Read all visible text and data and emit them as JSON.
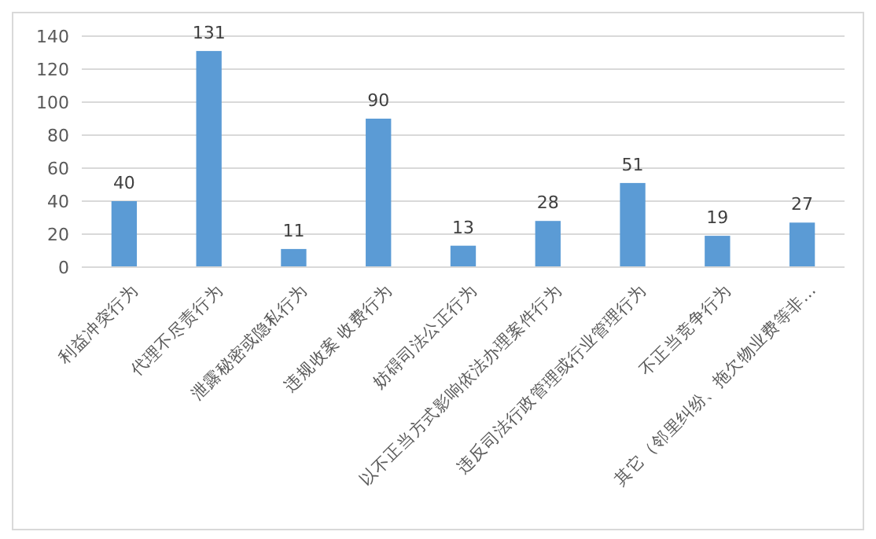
{
  "chart_data": {
    "type": "bar",
    "categories": [
      "利益冲突行为",
      "代理不尽责行为",
      "泄露秘密或隐私行为",
      "违规收案 收费行为",
      "妨碍司法公正行为",
      "以不正当方式影响依法办理案件行为",
      "违反司法行政管理或行业管理行为",
      "不正当竞争行为",
      "其它（邻里纠纷、拖欠物业费等非…"
    ],
    "values": [
      40,
      131,
      11,
      90,
      13,
      28,
      51,
      19,
      27
    ],
    "color": "#5b9bd5",
    "ylim": [
      0,
      140
    ],
    "yticks": [
      0,
      20,
      40,
      60,
      80,
      100,
      120,
      140
    ],
    "grid": "y",
    "data_labels": true
  }
}
